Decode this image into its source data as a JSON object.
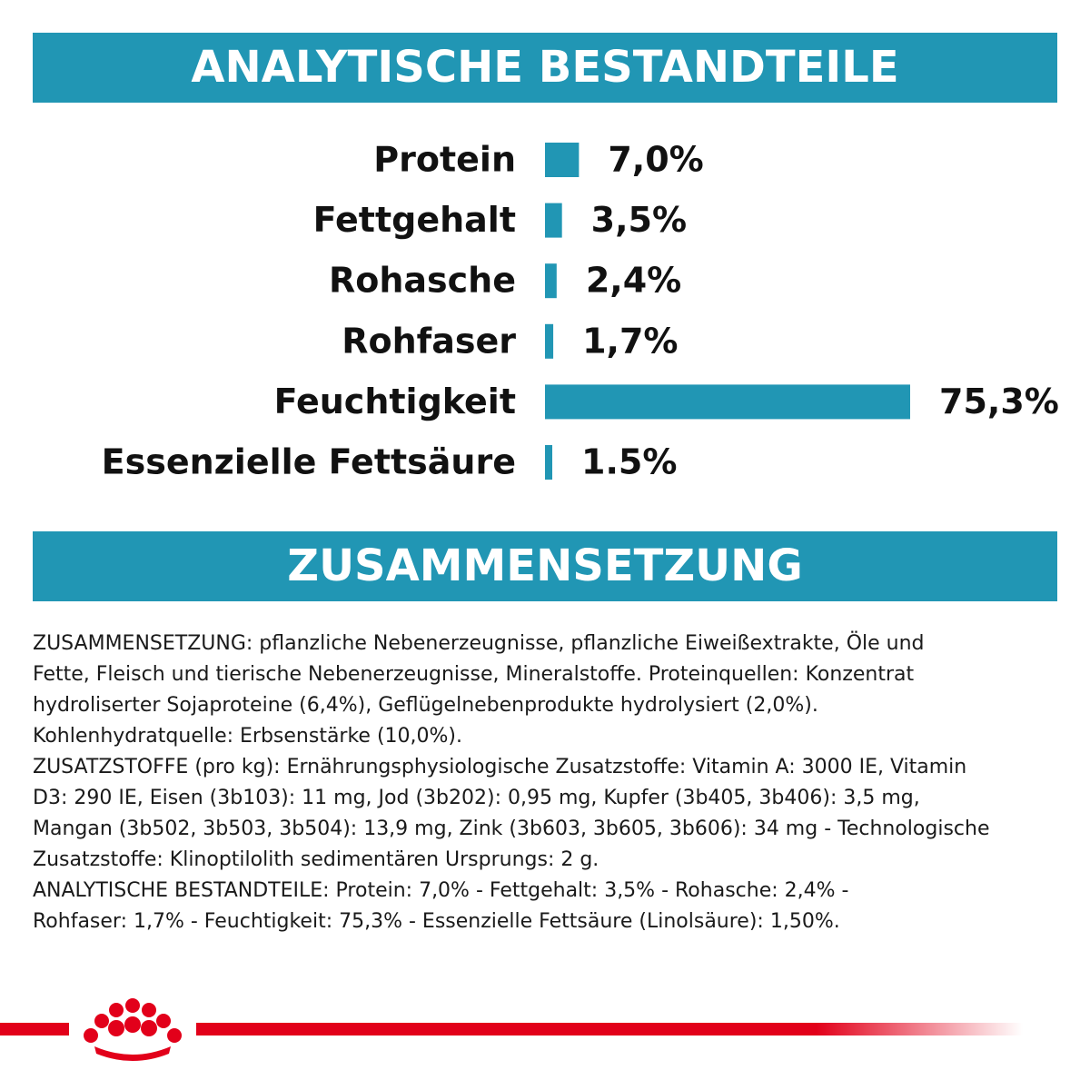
{
  "chart_data": {
    "type": "bar",
    "orientation": "horizontal",
    "title": "ANALYTISCHE BESTANDTEILE",
    "categories": [
      "Protein",
      "Fettgehalt",
      "Rohasche",
      "Rohfaser",
      "Feuchtigkeit",
      "Essenzielle Fettsäure"
    ],
    "values": [
      7.0,
      3.5,
      2.4,
      1.7,
      75.3,
      1.5
    ],
    "value_labels": [
      "7,0%",
      "3,5%",
      "2,4%",
      "1,7%",
      "75,3%",
      "1.5%"
    ],
    "color": "#2196b4"
  },
  "composition": {
    "title": "ZUSAMMENSETZUNG",
    "lines": [
      "ZUSAMMENSETZUNG: pflanzliche Nebenerzeugnisse, pflanzliche Eiweißextrakte, Öle und",
      "Fette, Fleisch und tierische Nebenerzeugnisse, Mineralstoffe. Proteinquellen: Konzentrat",
      "hydroliserter Sojaproteine (6,4%), Geflügelnebenprodukte hydrolysiert (2,0%).",
      "Kohlenhydratquelle: Erbsenstärke (10,0%).",
      "ZUSATZSTOFFE (pro kg): Ernährungsphysiologische Zusatzstoffe: Vitamin A: 3000 IE, Vitamin",
      "D3: 290 IE, Eisen (3b103): 11 mg, Jod (3b202): 0,95 mg, Kupfer (3b405, 3b406): 3,5 mg,",
      "Mangan (3b502, 3b503, 3b504): 13,9 mg, Zink (3b603, 3b605, 3b606): 34 mg - Technologische",
      "Zusatzstoffe: Klinoptilolith sedimentären Ursprungs: 2 g.",
      "ANALYTISCHE BESTANDTEILE: Protein: 7,0% - Fettgehalt: 3,5% - Rohasche: 2,4% -",
      "Rohfaser: 1,7% - Feuchtigkeit: 75,3% - Essenzielle Fettsäure (Linolsäure): 1,50%."
    ]
  }
}
